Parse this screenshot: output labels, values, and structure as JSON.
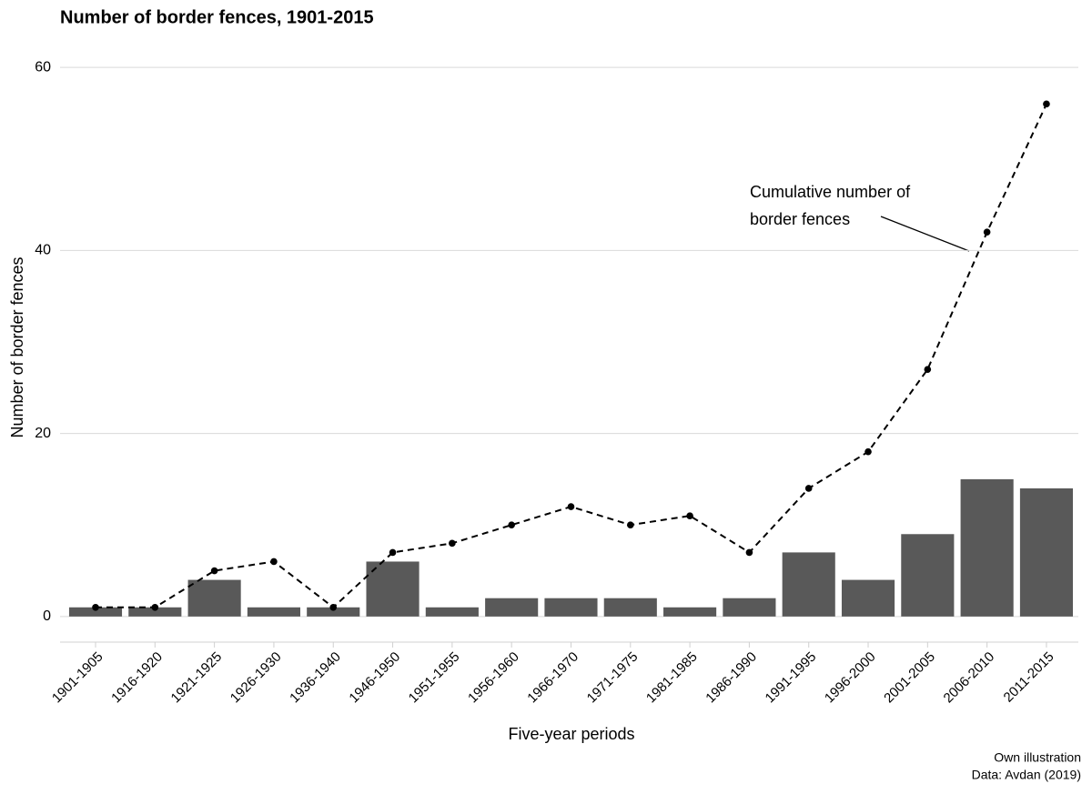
{
  "chart_data": {
    "type": "bar",
    "title": "Number of border fences, 1901-2015",
    "xlabel": "Five-year periods",
    "ylabel": "Number of border fences",
    "categories": [
      "1901-1905",
      "1916-1920",
      "1921-1925",
      "1926-1930",
      "1936-1940",
      "1946-1950",
      "1951-1955",
      "1956-1960",
      "1966-1970",
      "1971-1975",
      "1981-1985",
      "1986-1990",
      "1991-1995",
      "1996-2000",
      "2001-2005",
      "2006-2010",
      "2011-2015"
    ],
    "series": [
      {
        "type": "bar",
        "color": "#595959",
        "values": [
          1,
          1,
          4,
          1,
          1,
          6,
          1,
          2,
          2,
          2,
          1,
          2,
          7,
          4,
          9,
          15,
          14
        ]
      },
      {
        "type": "line",
        "color": "#000000",
        "dashed": true,
        "values": [
          1,
          1,
          5,
          6,
          1,
          7,
          8,
          10,
          12,
          10,
          11,
          7,
          14,
          18,
          27,
          42,
          56
        ]
      }
    ],
    "ylim": [
      -2.8,
      61.5
    ],
    "yticks": [
      0,
      20,
      40,
      60
    ],
    "grid": true,
    "annotation": [
      "Cumulative number of",
      "border fences"
    ],
    "caption": [
      "Own illustration",
      "Data: Avdan (2019)"
    ]
  }
}
